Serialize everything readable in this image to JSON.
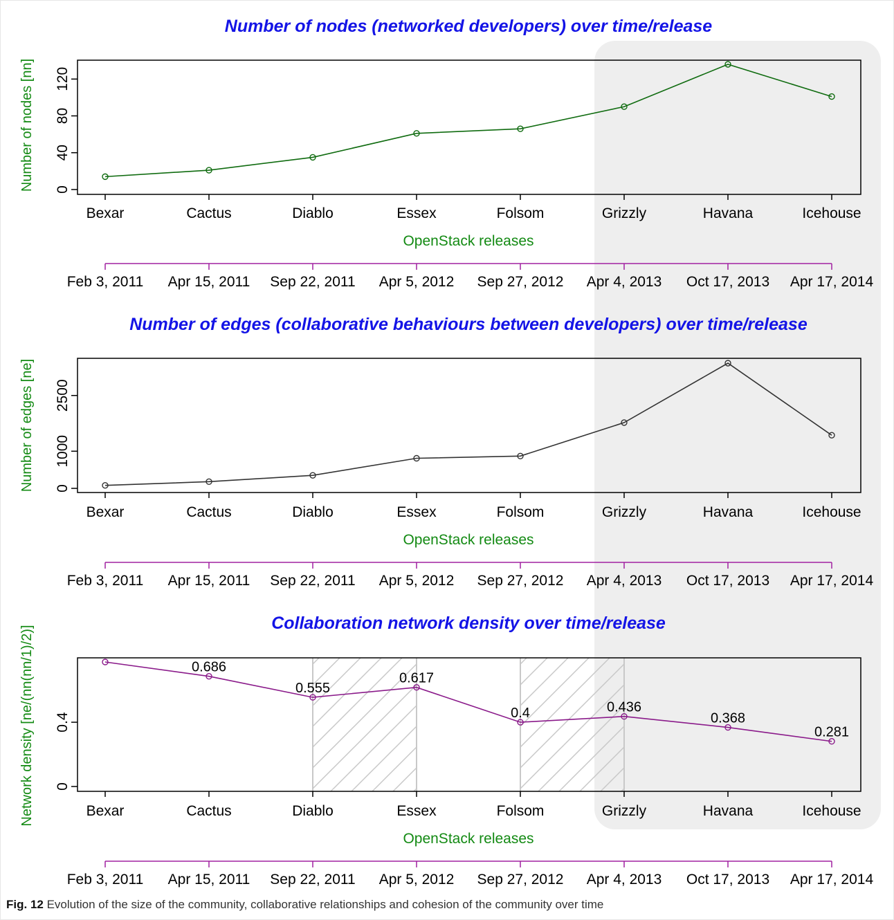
{
  "caption": {
    "label": "Fig. 12",
    "text": "Evolution of the size of the community, collaborative relationships and cohesion of the community over time"
  },
  "colors": {
    "title": "#1414e6",
    "axis_label": "#138a13",
    "nodes_line": "#0f6b0f",
    "edges_line": "#333333",
    "density_line": "#8a1a8a",
    "timeline": "#a020a0",
    "highlight": "#eeeeee",
    "hatch": "#c8c8c8"
  },
  "chart_data": [
    {
      "type": "line",
      "title": "Number of nodes (networked developers) over time/release",
      "xlabel": "OpenStack releases",
      "ylabel": "Number of nodes [nn]",
      "categories": [
        "Bexar",
        "Cactus",
        "Diablo",
        "Essex",
        "Folsom",
        "Grizzly",
        "Havana",
        "Icehouse"
      ],
      "dates": [
        "Feb 3, 2011",
        "Apr 15, 2011",
        "Sep 22, 2011",
        "Apr 5, 2012",
        "Sep 27, 2012",
        "Apr 4, 2013",
        "Oct 17, 2013",
        "Apr 17, 2014"
      ],
      "values": [
        14,
        21,
        35,
        61,
        66,
        90,
        136,
        101
      ],
      "yticks": [
        0,
        40,
        80,
        120
      ],
      "ylim": [
        0,
        136
      ]
    },
    {
      "type": "line",
      "title": "Number of edges (collaborative behaviours between developers) over time/release",
      "xlabel": "OpenStack releases",
      "ylabel": "Number of edges [ne]",
      "categories": [
        "Bexar",
        "Cactus",
        "Diablo",
        "Essex",
        "Folsom",
        "Grizzly",
        "Havana",
        "Icehouse"
      ],
      "dates": [
        "Feb 3, 2011",
        "Apr 15, 2011",
        "Sep 22, 2011",
        "Apr 5, 2012",
        "Sep 27, 2012",
        "Apr 4, 2013",
        "Oct 17, 2013",
        "Apr 17, 2014"
      ],
      "values": [
        80,
        180,
        350,
        810,
        870,
        1770,
        3370,
        1430
      ],
      "yticks": [
        0,
        1000,
        2500
      ],
      "ylim": [
        0,
        3370
      ]
    },
    {
      "type": "line",
      "title": "Collaboration network density over time/release",
      "xlabel": "OpenStack releases",
      "ylabel": "Network density [ne/(nn(nn/1)/2)]",
      "categories": [
        "Bexar",
        "Cactus",
        "Diablo",
        "Essex",
        "Folsom",
        "Grizzly",
        "Havana",
        "Icehouse"
      ],
      "dates": [
        "Feb 3, 2011",
        "Apr 15, 2011",
        "Sep 22, 2011",
        "Apr 5, 2012",
        "Sep 27, 2012",
        "Apr 4, 2013",
        "Oct 17, 2013",
        "Apr 17, 2014"
      ],
      "values": [
        0.775,
        0.686,
        0.555,
        0.617,
        0.4,
        0.436,
        0.368,
        0.281
      ],
      "value_labels": [
        "",
        "0.686",
        "0.555",
        "0.617",
        "0.4",
        "0.436",
        "0.368",
        "0.281"
      ],
      "yticks": [
        0.0,
        0.4
      ],
      "ylim": [
        0,
        0.775
      ],
      "hatched_ranges": [
        [
          "Diablo",
          "Essex"
        ],
        [
          "Folsom",
          "Grizzly"
        ]
      ]
    }
  ],
  "highlight_range": [
    "Grizzly",
    "Icehouse"
  ]
}
